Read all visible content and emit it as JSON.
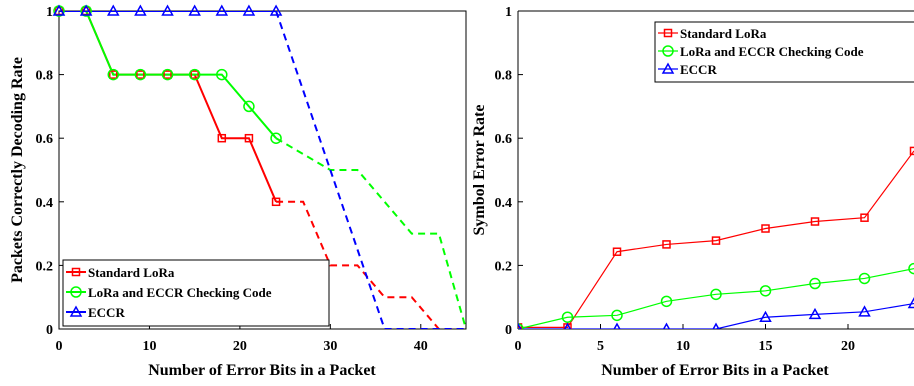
{
  "chart_data": [
    {
      "type": "line",
      "xlabel": "Number of Error Bits in a Packet",
      "ylabel": "Packets Correctly Decoding Rate",
      "xlim": [
        0,
        45
      ],
      "ylim": [
        0,
        1
      ],
      "xticks": [
        0,
        10,
        20,
        30,
        40
      ],
      "yticks": [
        0,
        0.2,
        0.4,
        0.6,
        0.8,
        1
      ],
      "ytick_labels": [
        "0",
        "0.2",
        "0.4",
        "0.6",
        "0.8",
        "1"
      ],
      "legend_position": "bottom-left",
      "grid": false,
      "series": [
        {
          "name": "Standard LoRa",
          "color": "#ff0000",
          "marker": "square",
          "x": [
            0,
            3,
            6,
            9,
            12,
            15,
            18,
            21,
            24
          ],
          "y": [
            1,
            1,
            0.8,
            0.8,
            0.8,
            0.8,
            0.6,
            0.6,
            0.4
          ],
          "dashed_x": [
            24,
            27,
            30,
            33,
            36,
            39,
            42,
            45
          ],
          "dashed_y": [
            0.4,
            0.4,
            0.2,
            0.2,
            0.1,
            0.1,
            0,
            0
          ]
        },
        {
          "name": "LoRa and ECCR Checking Code",
          "color": "#00ff00",
          "marker": "circle",
          "x": [
            0,
            3,
            6,
            9,
            12,
            15,
            18,
            21,
            24
          ],
          "y": [
            1,
            1,
            0.8,
            0.8,
            0.8,
            0.8,
            0.8,
            0.7,
            0.6
          ],
          "dashed_x": [
            24,
            27,
            30,
            33,
            36,
            39,
            42,
            45
          ],
          "dashed_y": [
            0.6,
            0.55,
            0.5,
            0.5,
            0.4,
            0.3,
            0.3,
            0
          ]
        },
        {
          "name": "ECCR",
          "color": "#0000ff",
          "marker": "triangle",
          "x": [
            0,
            3,
            6,
            9,
            12,
            15,
            18,
            21,
            24
          ],
          "y": [
            1,
            1,
            1,
            1,
            1,
            1,
            1,
            1,
            1
          ],
          "dashed_x": [
            24,
            36,
            45
          ],
          "dashed_y": [
            1,
            0,
            0
          ]
        }
      ]
    },
    {
      "type": "line",
      "xlabel": "Number of Error Bits in a Packet",
      "ylabel": "Symbol Error Rate",
      "xlim": [
        0,
        24
      ],
      "ylim": [
        0,
        1
      ],
      "xticks": [
        0,
        5,
        10,
        15,
        20
      ],
      "yticks": [
        0,
        0.2,
        0.4,
        0.6,
        0.8,
        1
      ],
      "ytick_labels": [
        "0",
        "0.2",
        "0.4",
        "0.6",
        "0.8",
        "1"
      ],
      "legend_position": "top-right",
      "grid": false,
      "series": [
        {
          "name": "Standard LoRa",
          "color": "#ff0000",
          "marker": "square",
          "x": [
            0,
            3,
            6,
            9,
            12,
            15,
            18,
            21,
            24
          ],
          "y": [
            0.005,
            0.005,
            0.243,
            0.266,
            0.278,
            0.316,
            0.338,
            0.35,
            0.56
          ]
        },
        {
          "name": "LoRa and ECCR Checking Code",
          "color": "#00ff00",
          "marker": "circle",
          "x": [
            0,
            3,
            6,
            9,
            12,
            15,
            18,
            21,
            24
          ],
          "y": [
            0,
            0.037,
            0.043,
            0.087,
            0.109,
            0.12,
            0.143,
            0.159,
            0.19
          ]
        },
        {
          "name": "ECCR",
          "color": "#0000ff",
          "marker": "triangle",
          "x": [
            0,
            3,
            6,
            9,
            12,
            15,
            18,
            21,
            24
          ],
          "y": [
            0,
            0,
            0,
            0,
            0,
            0.037,
            0.046,
            0.054,
            0.08
          ]
        }
      ]
    }
  ]
}
